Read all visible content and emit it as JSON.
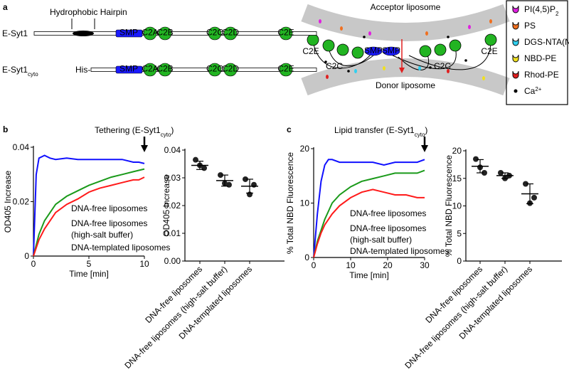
{
  "panel_labels": [
    "a",
    "b",
    "c"
  ],
  "diagram": {
    "hairpin_label": "Hydrophobic Hairpin",
    "constructs": [
      {
        "name": "E-Syt1",
        "domains": [
          "SMP",
          "C2A",
          "C2B",
          "C2C",
          "C2D",
          "C2E"
        ]
      },
      {
        "name": "E-Syt1",
        "name_sub": "cyto",
        "tag": "His-",
        "domains": [
          "SMP",
          "C2A",
          "C2B",
          "C2C",
          "C2D",
          "C2E"
        ]
      }
    ],
    "acceptor": "Acceptor liposome",
    "donor": "Donor liposome",
    "labels": [
      "C2E",
      "C2C",
      "SMP",
      "SMP",
      "C2C",
      "C2E"
    ],
    "legend": [
      {
        "text": "PI(4,5)P",
        "sub": "2",
        "color": "#e020e0"
      },
      {
        "text": "PS",
        "color": "#f07020"
      },
      {
        "text": "DGS-NTA(Ni)",
        "color": "#30d0f0"
      },
      {
        "text": "NBD-PE",
        "color": "#f0e020"
      },
      {
        "text": "Rhod-PE",
        "color": "#e02020"
      },
      {
        "text": "Ca",
        "sup": "2+",
        "color": "#000000"
      }
    ]
  },
  "chart_data": [
    {
      "type": "line",
      "ylabel": "OD405 Increase",
      "xlabel": "Time [min]",
      "annotation": {
        "text": "Tethering (E-Syt1",
        "sub": "cyto",
        "after": ")"
      },
      "x": [
        0,
        0.25,
        0.5,
        1,
        1.5,
        2,
        3,
        4,
        5,
        6,
        7,
        8,
        9,
        9.5,
        10
      ],
      "xlim": [
        0,
        10
      ],
      "xticks": [
        0,
        5,
        10
      ],
      "ylim": [
        0,
        0.04
      ],
      "yticks": [
        0,
        0.02,
        0.04
      ],
      "series": [
        {
          "name": "DNA-free liposomes",
          "color": "#1010ff",
          "values": [
            0,
            0.03,
            0.036,
            0.037,
            0.036,
            0.0355,
            0.036,
            0.0355,
            0.0355,
            0.0355,
            0.0355,
            0.0355,
            0.0345,
            0.0345,
            0.034
          ]
        },
        {
          "name": "DNA-free liposomes (high-salt buffer)",
          "color": "#1a9a1a",
          "values": [
            0,
            0.004,
            0.008,
            0.013,
            0.016,
            0.019,
            0.022,
            0.024,
            0.026,
            0.0275,
            0.029,
            0.03,
            0.031,
            0.0315,
            0.032
          ]
        },
        {
          "name": "DNA-templated liposomes",
          "color": "#ff1a1a",
          "values": [
            0,
            0.003,
            0.006,
            0.01,
            0.013,
            0.016,
            0.019,
            0.021,
            0.0235,
            0.025,
            0.026,
            0.027,
            0.028,
            0.028,
            0.029
          ]
        }
      ]
    },
    {
      "type": "dot",
      "ylabel": "OD405 Increase",
      "categories": [
        "DNA-free liposomes",
        "DNA-free liposomes (high-salt buffer)",
        "DNA-templated liposomes"
      ],
      "colors": [
        "#1010ff",
        "#1a9a1a",
        "#ff1a1a"
      ],
      "points": [
        [
          0.0365,
          0.0335,
          0.0345
        ],
        [
          0.031,
          0.0275,
          0.028
        ],
        [
          0.0295,
          0.0275,
          0.024
        ]
      ],
      "means": [
        0.0345,
        0.029,
        0.027
      ],
      "sd": [
        0.0015,
        0.002,
        0.0025
      ],
      "ylim": [
        0,
        0.04
      ],
      "yticks": [
        {
          "value": 0,
          "label": "0.00"
        },
        0.01,
        0.02,
        0.03,
        0.04
      ]
    },
    {
      "type": "line",
      "ylabel": "% Total NBD Fluorescence",
      "xlabel": "Time [min]",
      "annotation": {
        "text": "Lipid transfer (E-Syt1",
        "sub": "cyto",
        "after": ")"
      },
      "x": [
        0,
        1,
        2,
        3,
        4,
        5,
        7,
        10,
        13,
        16,
        19,
        22,
        25,
        28,
        30
      ],
      "xlim": [
        0,
        30
      ],
      "xticks": [
        0,
        10,
        20,
        30
      ],
      "ylim": [
        0,
        20
      ],
      "yticks": [
        0,
        10,
        20
      ],
      "series": [
        {
          "name": "DNA-free liposomes",
          "color": "#1010ff",
          "values": [
            0,
            8,
            14,
            17,
            18,
            18,
            17.5,
            17.5,
            17.5,
            17.5,
            17,
            17.5,
            17.5,
            17.5,
            18
          ]
        },
        {
          "name": "DNA-free liposomes (high-salt buffer)",
          "color": "#1a9a1a",
          "values": [
            0,
            3,
            5,
            7,
            8.5,
            10,
            11.5,
            13,
            14,
            14.5,
            15,
            15.5,
            15.5,
            15.5,
            16
          ]
        },
        {
          "name": "DNA-templated liposomes",
          "color": "#ff1a1a",
          "values": [
            0,
            2.5,
            4.5,
            6,
            7,
            8,
            9.5,
            11,
            12,
            12.5,
            12,
            11.5,
            11.5,
            11,
            11
          ]
        }
      ]
    },
    {
      "type": "dot",
      "ylabel": "% Total NBD Fluorescence",
      "categories": [
        "DNA-free liposomes",
        "DNA-free liposomes (high-salt buffer)",
        "DNA-templated liposomes"
      ],
      "colors": [
        "#1010ff",
        "#1a9a1a",
        "#ff1a1a"
      ],
      "points": [
        [
          18.5,
          16,
          17
        ],
        [
          16,
          15.5,
          15
        ],
        [
          14,
          11.5,
          10.5
        ]
      ],
      "means": [
        17.2,
        15.5,
        12.2
      ],
      "sd": [
        1.2,
        0.5,
        1.8
      ],
      "ylim": [
        0,
        20
      ],
      "yticks": [
        0,
        5,
        10,
        15,
        20
      ]
    }
  ]
}
